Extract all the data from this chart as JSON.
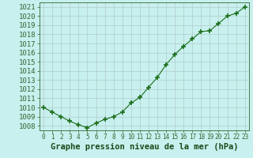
{
  "x": [
    0,
    1,
    2,
    3,
    4,
    5,
    6,
    7,
    8,
    9,
    10,
    11,
    12,
    13,
    14,
    15,
    16,
    17,
    18,
    19,
    20,
    21,
    22,
    23
  ],
  "y": [
    1010.0,
    1009.5,
    1009.0,
    1008.5,
    1008.1,
    1007.8,
    1008.3,
    1008.7,
    1009.0,
    1009.5,
    1010.5,
    1011.1,
    1012.2,
    1013.3,
    1014.7,
    1015.8,
    1016.7,
    1017.5,
    1018.3,
    1018.4,
    1019.2,
    1020.0,
    1020.3,
    1021.0
  ],
  "line_color": "#1a6e1a",
  "marker": "+",
  "marker_size": 4,
  "marker_lw": 1.2,
  "bg_color": "#c8f0ee",
  "grid_color": "#b0cccc",
  "xlabel": "Graphe pression niveau de la mer (hPa)",
  "xlabel_fontsize": 7.5,
  "ytick_fontsize": 6.5,
  "xtick_fontsize": 5.5,
  "ylim": [
    1007.5,
    1021.5
  ],
  "xlim": [
    -0.5,
    23.5
  ],
  "yticks": [
    1008,
    1009,
    1010,
    1011,
    1012,
    1013,
    1014,
    1015,
    1016,
    1017,
    1018,
    1019,
    1020,
    1021
  ],
  "xticks": [
    0,
    1,
    2,
    3,
    4,
    5,
    6,
    7,
    8,
    9,
    10,
    11,
    12,
    13,
    14,
    15,
    16,
    17,
    18,
    19,
    20,
    21,
    22,
    23
  ],
  "spine_color": "#336633",
  "label_color": "#1a4a1a",
  "linewidth": 0.8
}
